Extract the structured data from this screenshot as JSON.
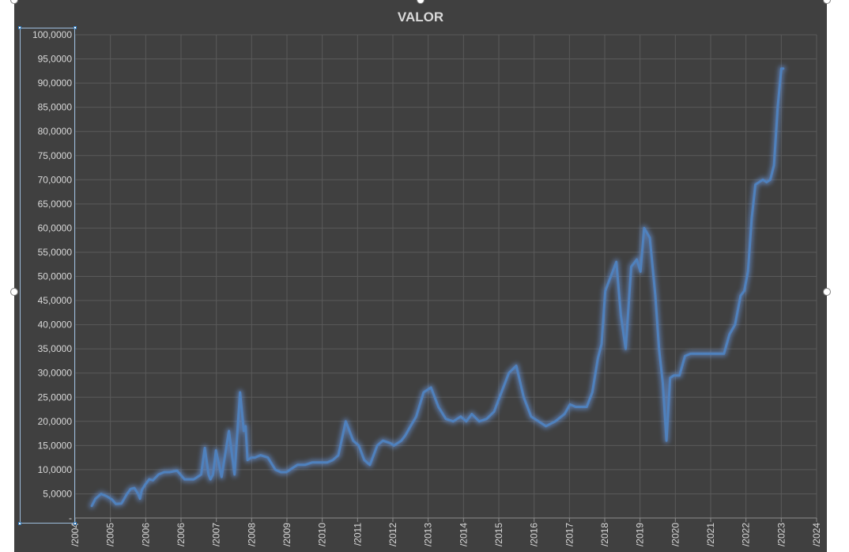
{
  "chart_data": {
    "type": "line",
    "title": "VALOR",
    "xlabel": "",
    "ylabel": "",
    "ylim": [
      0,
      100000
    ],
    "ytick_labels": [
      "-",
      "5,0000",
      "10,0000",
      "15,0000",
      "20,0000",
      "25,0000",
      "30,0000",
      "35,0000",
      "40,0000",
      "45,0000",
      "50,0000",
      "55,0000",
      "60,0000",
      "65,0000",
      "70,0000",
      "75,0000",
      "80,0000",
      "85,0000",
      "90,0000",
      "95,0000",
      "100,0000"
    ],
    "xlim": [
      2004,
      2024
    ],
    "xtick_labels": [
      "/2004",
      "/2005",
      "/2006",
      "/2006",
      "/2007",
      "/2008",
      "/2009",
      "/2010",
      "/2011",
      "/2012",
      "/2013",
      "/2014",
      "/2015",
      "/2016",
      "/2017",
      "/2018",
      "/2019",
      "/2020",
      "/2021",
      "/2022",
      "/2023",
      "/2024"
    ],
    "grid": true,
    "line_color": "#4f81bd",
    "series": [
      {
        "x": [
          2004.45,
          2004.55,
          2004.7,
          2004.85,
          2005.0,
          2005.1,
          2005.25,
          2005.4,
          2005.5,
          2005.6,
          2005.7,
          2005.75,
          2005.8,
          2005.9,
          2006.0,
          2006.1,
          2006.25,
          2006.4,
          2006.55,
          2006.75,
          2006.95,
          2007.2,
          2007.4,
          2007.5,
          2007.6,
          2007.65,
          2007.72,
          2007.8,
          2007.95,
          2008.15,
          2008.3,
          2008.45,
          2008.55,
          2008.6,
          2008.65,
          2008.75,
          2008.85,
          2009.0,
          2009.2,
          2009.4,
          2009.55,
          2009.7,
          2009.8,
          2009.9,
          2010.0,
          2010.2,
          2010.4,
          2010.6,
          2010.8,
          2010.95,
          2011.1,
          2011.3,
          2011.5,
          2011.65,
          2011.8,
          2011.95,
          2012.1,
          2012.15,
          2012.3,
          2012.5,
          2012.6,
          2012.8,
          2012.9,
          2013.05,
          2013.2,
          2013.4,
          2013.6,
          2013.8,
          2014.0,
          2014.2,
          2014.4,
          2014.55,
          2014.7,
          2014.9,
          2015.1,
          2015.3,
          2015.5,
          2015.7,
          2015.9,
          2016.1,
          2016.3,
          2016.5,
          2016.7,
          2016.95,
          2017.2,
          2017.35,
          2017.5,
          2017.65,
          2017.8,
          2017.95,
          2018.1,
          2018.2,
          2018.3,
          2018.45,
          2018.6,
          2018.72,
          2018.85,
          2019.0,
          2019.15,
          2019.25,
          2019.35,
          2019.5,
          2019.65,
          2019.75,
          2019.85,
          2019.95,
          2020.05,
          2020.15,
          2020.3,
          2020.45,
          2020.6,
          2020.75,
          2020.9,
          2021.05,
          2021.2,
          2021.35,
          2021.5,
          2021.65,
          2021.8,
          2021.95,
          2022.05,
          2022.15,
          2022.25,
          2022.35,
          2022.45,
          2022.55,
          2022.65,
          2022.75,
          2022.85,
          2022.95,
          2023.05,
          2023.1
        ],
        "y": [
          2500,
          4000,
          5000,
          4500,
          3800,
          2900,
          3000,
          5000,
          6000,
          6200,
          5000,
          4000,
          5800,
          7000,
          8000,
          7800,
          9000,
          9500,
          9500,
          9800,
          8000,
          8000,
          9000,
          14500,
          9000,
          8000,
          9000,
          14000,
          8500,
          18000,
          9000,
          26000,
          18000,
          19000,
          12000,
          12500,
          12500,
          13000,
          12500,
          10000,
          9500,
          9500,
          10000,
          10500,
          11000,
          11000,
          11500,
          11500,
          11500,
          12000,
          13000,
          20000,
          16000,
          15000,
          12000,
          11000,
          14000,
          15000,
          16000,
          15500,
          15000,
          16000,
          17000,
          19000,
          21000,
          26000,
          27000,
          23000,
          20500,
          20000,
          21000,
          20000,
          21500,
          20000,
          20500,
          22000,
          26000,
          30000,
          31500,
          25000,
          21000,
          20000,
          19000,
          20000,
          21500,
          23500,
          23000,
          23000,
          23000,
          26000,
          33000,
          36000,
          47000,
          50000,
          53000,
          42000,
          35000,
          52000,
          53500,
          51000,
          60000,
          58000,
          46000,
          35000,
          28000,
          16000,
          29000,
          29500,
          29500,
          33500,
          34000,
          34000,
          34000,
          34000,
          34000,
          34000,
          34000,
          38000,
          40000,
          46000,
          47000,
          51000,
          62000,
          69000,
          69500,
          70000,
          69500,
          70000,
          73000,
          85000,
          93000,
          93000
        ]
      }
    ]
  }
}
